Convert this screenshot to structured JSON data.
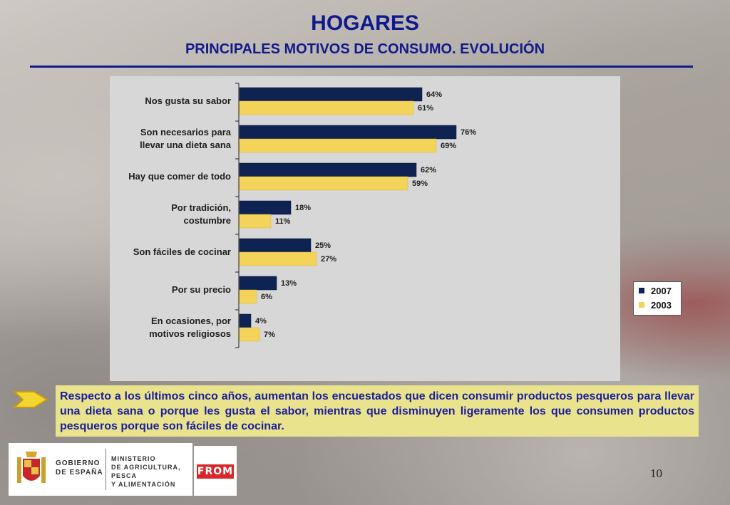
{
  "slide": {
    "title": "HOGARES",
    "subtitle": "PRINCIPALES MOTIVOS DE CONSUMO. EVOLUCIÓN",
    "note": "Respecto a los últimos cinco años, aumentan los encuestados que dicen consumir productos pesqueros para llevar una dieta sana o porque  les gusta el sabor, mientras que disminuyen ligeramente los que consumen productos pesqueros porque son fáciles de cocinar.",
    "page_number": "10"
  },
  "logos": {
    "gov_line1": "GOBIERNO",
    "gov_line2": "DE ESPAÑA",
    "min_line1": "MINISTERIO",
    "min_line2": "DE AGRICULTURA, PESCA",
    "min_line3": "Y ALIMENTACIÓN",
    "from": "FROM"
  },
  "colors": {
    "title": "#101a8a",
    "series_2007": "#0f2352",
    "series_2003": "#f3d35a",
    "note_bg": "#e9e38e",
    "note_text": "#1a1f9a"
  },
  "chart_data": {
    "type": "bar",
    "orientation": "horizontal",
    "categories": [
      [
        "Nos gusta su sabor"
      ],
      [
        "Son necesarios para",
        "llevar una dieta sana"
      ],
      [
        "Hay que comer de todo"
      ],
      [
        "Por tradición,",
        "costumbre"
      ],
      [
        "Son fáciles de cocinar"
      ],
      [
        "Por su precio"
      ],
      [
        "En ocasiones, por",
        "motivos religiosos"
      ]
    ],
    "series": [
      {
        "name": "2007",
        "values": [
          64,
          76,
          62,
          18,
          25,
          13,
          4
        ],
        "color": "#0f2352"
      },
      {
        "name": "2003",
        "values": [
          61,
          69,
          59,
          11,
          27,
          6,
          7
        ],
        "color": "#f3d35a"
      }
    ],
    "value_suffix": "%",
    "xlim": [
      0,
      100
    ],
    "legend_placement": "right"
  }
}
